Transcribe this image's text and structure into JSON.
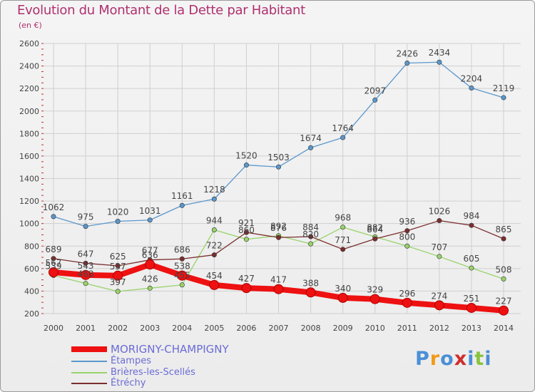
{
  "header": {
    "title": "Evolution du Montant de la Dette par Habitant",
    "subtitle": "(en €)"
  },
  "logo": {
    "text": "Proxiti"
  },
  "colors": {
    "title": "#b0306f",
    "grid": "#cfcfcf",
    "axis_text": "#444444",
    "value_text": "#444444",
    "legend_text": "#6b6bd6"
  },
  "chart_data": {
    "type": "line",
    "title": "Evolution du Montant de la Dette par Habitant",
    "subtitle": "(en €)",
    "xlabel": "",
    "ylabel": "",
    "x": [
      2000,
      2001,
      2002,
      2003,
      2004,
      2005,
      2006,
      2007,
      2008,
      2009,
      2010,
      2011,
      2012,
      2013,
      2014
    ],
    "ylim": [
      200,
      2600
    ],
    "yticks": [
      200,
      400,
      600,
      800,
      1000,
      1200,
      1400,
      1600,
      1800,
      2000,
      2200,
      2400,
      2600
    ],
    "grid": true,
    "legend_position": "bottom-left",
    "series": [
      {
        "name": "MORIGNY-CHAMPIGNY",
        "color": "#ee1111",
        "highlight": true,
        "values": [
          567,
          543,
          537,
          636,
          538,
          454,
          427,
          417,
          388,
          340,
          329,
          296,
          274,
          251,
          227
        ]
      },
      {
        "name": "Étampes",
        "color": "#5b97cc",
        "values": [
          1062,
          975,
          1020,
          1031,
          1161,
          1218,
          1520,
          1503,
          1674,
          1764,
          2097,
          2426,
          2434,
          2204,
          2119
        ]
      },
      {
        "name": "Brières-les-Scellés",
        "color": "#99d36b",
        "values": [
          539,
          468,
          397,
          426,
          455,
          944,
          860,
          892,
          820,
          968,
          882,
          800,
          707,
          605,
          508
        ]
      },
      {
        "name": "Étréchy",
        "color": "#7b2e2e",
        "values": [
          689,
          647,
          625,
          677,
          686,
          722,
          921,
          876,
          884,
          771,
          864,
          936,
          1026,
          984,
          865
        ]
      }
    ]
  }
}
